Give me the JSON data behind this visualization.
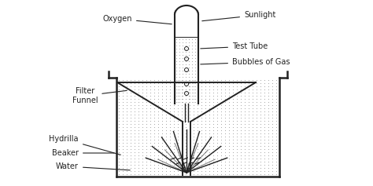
{
  "bg_color": "#ffffff",
  "line_color": "#222222",
  "dot_color": "#999999",
  "labels": {
    "oxygen": "Oxygen",
    "sunlight": "Sunlight",
    "test_tube": "Test Tube",
    "bubbles": "Bubbles of Gas",
    "filter_funnel": "Filter\nFunnel",
    "hydrilla": "Hydrilla",
    "beaker": "Beaker",
    "water": "Water"
  },
  "figsize": [
    4.74,
    2.37
  ],
  "dpi": 100
}
